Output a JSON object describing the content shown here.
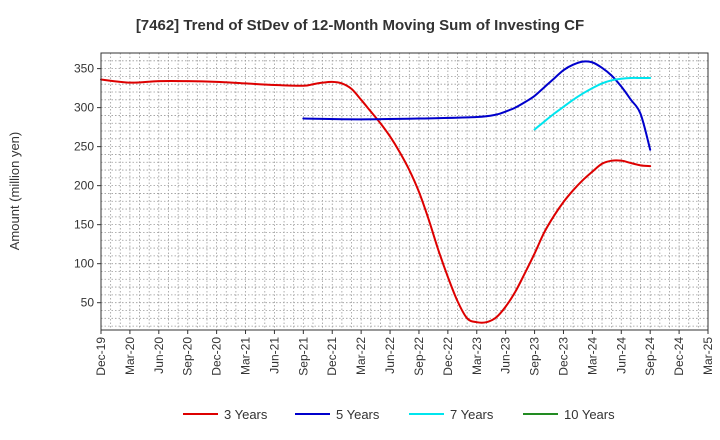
{
  "chart_data": {
    "type": "line",
    "title": "[7462]  Trend of StDev of 12-Month Moving Sum of Investing CF",
    "ylabel": "Amount (million yen)",
    "xlabel": "",
    "ylim": [
      15,
      370
    ],
    "yticks": [
      50,
      100,
      150,
      200,
      250,
      300,
      350
    ],
    "x_range": [
      "2019-12",
      "2025-03"
    ],
    "xtick_labels": [
      "Dec-19",
      "Mar-20",
      "Jun-20",
      "Sep-20",
      "Dec-20",
      "Mar-21",
      "Jun-21",
      "Sep-21",
      "Dec-21",
      "Mar-22",
      "Jun-22",
      "Sep-22",
      "Dec-22",
      "Mar-23",
      "Jun-23",
      "Sep-23",
      "Dec-23",
      "Mar-24",
      "Jun-24",
      "Sep-24",
      "Dec-24",
      "Mar-25"
    ],
    "grid": true,
    "legend_position": "bottom",
    "series": [
      {
        "name": "3 Years",
        "color": "#dd0000",
        "points": [
          [
            "2019-12",
            336
          ],
          [
            "2020-03",
            332
          ],
          [
            "2020-06",
            334
          ],
          [
            "2020-09",
            334
          ],
          [
            "2020-12",
            333
          ],
          [
            "2021-03",
            331
          ],
          [
            "2021-06",
            329
          ],
          [
            "2021-09",
            328
          ],
          [
            "2021-10",
            330
          ],
          [
            "2021-11",
            332
          ],
          [
            "2021-12",
            333
          ],
          [
            "2022-01",
            331
          ],
          [
            "2022-02",
            324
          ],
          [
            "2022-03",
            310
          ],
          [
            "2022-04",
            295
          ],
          [
            "2022-05",
            280
          ],
          [
            "2022-06",
            263
          ],
          [
            "2022-07",
            243
          ],
          [
            "2022-08",
            220
          ],
          [
            "2022-09",
            192
          ],
          [
            "2022-10",
            157
          ],
          [
            "2022-11",
            118
          ],
          [
            "2022-12",
            83
          ],
          [
            "2023-01",
            52
          ],
          [
            "2023-02",
            30
          ],
          [
            "2023-03",
            25
          ],
          [
            "2023-04",
            25
          ],
          [
            "2023-05",
            31
          ],
          [
            "2023-06",
            45
          ],
          [
            "2023-07",
            64
          ],
          [
            "2023-08",
            88
          ],
          [
            "2023-09",
            113
          ],
          [
            "2023-10",
            140
          ],
          [
            "2023-11",
            161
          ],
          [
            "2023-12",
            179
          ],
          [
            "2024-01",
            194
          ],
          [
            "2024-02",
            207
          ],
          [
            "2024-03",
            218
          ],
          [
            "2024-04",
            228
          ],
          [
            "2024-05",
            232
          ],
          [
            "2024-06",
            232
          ],
          [
            "2024-07",
            229
          ],
          [
            "2024-08",
            226
          ],
          [
            "2024-09",
            225
          ]
        ]
      },
      {
        "name": "5 Years",
        "color": "#0000cc",
        "points": [
          [
            "2021-09",
            286
          ],
          [
            "2022-03",
            285
          ],
          [
            "2022-09",
            286
          ],
          [
            "2023-03",
            288
          ],
          [
            "2023-05",
            291
          ],
          [
            "2023-06",
            295
          ],
          [
            "2023-07",
            300
          ],
          [
            "2023-08",
            307
          ],
          [
            "2023-09",
            315
          ],
          [
            "2023-10",
            326
          ],
          [
            "2023-11",
            337
          ],
          [
            "2023-12",
            348
          ],
          [
            "2024-01",
            355
          ],
          [
            "2024-02",
            359
          ],
          [
            "2024-03",
            358
          ],
          [
            "2024-04",
            351
          ],
          [
            "2024-05",
            341
          ],
          [
            "2024-06",
            327
          ],
          [
            "2024-07",
            310
          ],
          [
            "2024-08",
            292
          ],
          [
            "2024-09",
            246
          ]
        ]
      },
      {
        "name": "7 Years",
        "color": "#00e5ee",
        "points": [
          [
            "2023-09",
            272
          ],
          [
            "2023-10",
            282
          ],
          [
            "2023-11",
            292
          ],
          [
            "2023-12",
            301
          ],
          [
            "2024-01",
            310
          ],
          [
            "2024-02",
            318
          ],
          [
            "2024-03",
            325
          ],
          [
            "2024-04",
            331
          ],
          [
            "2024-05",
            335
          ],
          [
            "2024-06",
            337
          ],
          [
            "2024-07",
            338
          ],
          [
            "2024-08",
            338
          ],
          [
            "2024-09",
            338
          ]
        ]
      },
      {
        "name": "10 Years",
        "color": "#228b22",
        "points": []
      }
    ]
  }
}
